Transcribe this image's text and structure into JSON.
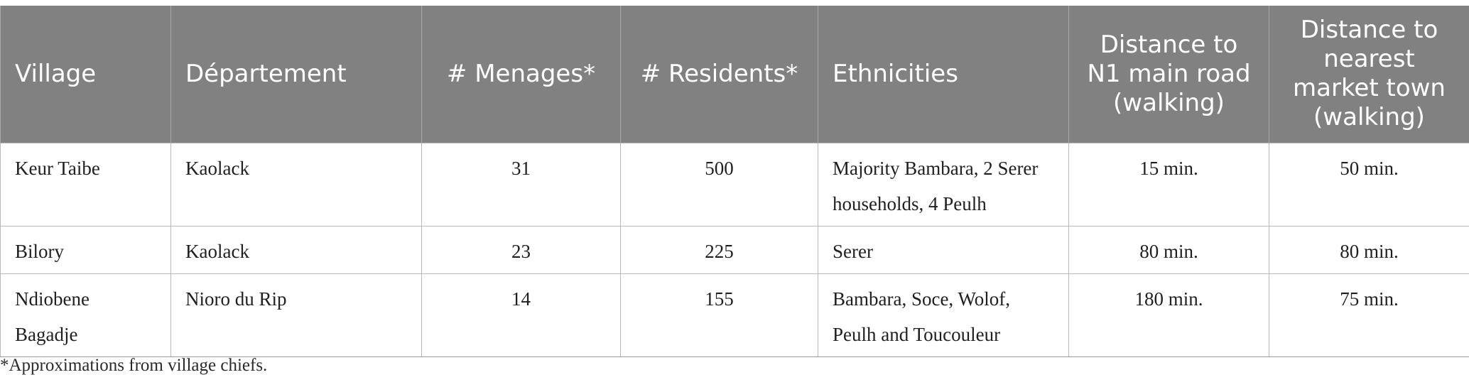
{
  "table": {
    "headers": [
      "Village",
      "Département",
      "# Menages*",
      "# Residents*",
      "Ethnicities",
      "Distance to N1 main road (walking)",
      "Distance to nearest market town (walking)"
    ],
    "rows": [
      [
        "Keur Taibe",
        "Kaolack",
        "31",
        "500",
        "Majority Bambara, 2 Serer households, 4 Peulh",
        "15 min.",
        "50 min."
      ],
      [
        "Bilory",
        "Kaolack",
        "23",
        "225",
        "Serer",
        "80 min.",
        "80 min."
      ],
      [
        "Ndiobene Bagadje",
        "Nioro du Rip",
        "14",
        "155",
        "Bambara, Soce, Wolof, Peulh and Toucouleur",
        "180 min.",
        "75 min."
      ]
    ]
  },
  "footnote": "*Approximations from village chiefs.",
  "colors": {
    "header_bg": "#818181",
    "header_text": "#ffffff",
    "grid": "#b9b9b9"
  }
}
